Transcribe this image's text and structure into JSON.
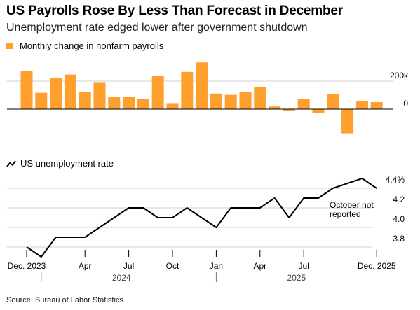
{
  "header": {
    "title": "US Payrolls Rose By Less Than Forecast in December",
    "subtitle": "Unemployment rate edged lower after government shutdown"
  },
  "source": "Source: Bureau of Labor Statistics",
  "colors": {
    "bar": "#ff9f2e",
    "line": "#000000",
    "grid": "#cfcfcf"
  },
  "chart_data": [
    {
      "type": "bar",
      "legend": "Monthly change in nonfarm payrolls",
      "x": [
        "2023-12",
        "2024-01",
        "2024-02",
        "2024-03",
        "2024-04",
        "2024-05",
        "2024-06",
        "2024-07",
        "2024-08",
        "2024-09",
        "2024-10",
        "2024-11",
        "2024-12",
        "2025-01",
        "2025-02",
        "2025-03",
        "2025-04",
        "2025-05",
        "2025-06",
        "2025-07",
        "2025-08",
        "2025-09",
        "2025-10",
        "2025-11",
        "2025-12"
      ],
      "values": [
        274,
        117,
        225,
        247,
        120,
        193,
        85,
        88,
        71,
        239,
        43,
        266,
        334,
        111,
        102,
        120,
        158,
        19,
        -13,
        72,
        -26,
        108,
        -173,
        56,
        50
      ],
      "ytick_labels": [
        "200k",
        "0"
      ],
      "yticks": [
        200,
        0
      ],
      "ylim": [
        -180,
        340
      ]
    },
    {
      "type": "line",
      "legend": "US unemployment rate",
      "x": [
        "2023-12",
        "2024-01",
        "2024-02",
        "2024-03",
        "2024-04",
        "2024-05",
        "2024-06",
        "2024-07",
        "2024-08",
        "2024-09",
        "2024-10",
        "2024-11",
        "2024-12",
        "2025-01",
        "2025-02",
        "2025-03",
        "2025-04",
        "2025-05",
        "2025-06",
        "2025-07",
        "2025-08",
        "2025-09",
        "2025-10",
        "2025-11",
        "2025-12"
      ],
      "values": [
        3.8,
        3.7,
        3.9,
        3.9,
        3.9,
        4.0,
        4.1,
        4.2,
        4.2,
        4.1,
        4.1,
        4.2,
        4.1,
        4.0,
        4.2,
        4.2,
        4.2,
        4.3,
        4.1,
        4.3,
        4.3,
        4.4,
        null,
        4.5,
        4.4
      ],
      "ytick_labels": [
        "4.4%",
        "4.2",
        "4.0",
        "3.8"
      ],
      "yticks": [
        4.4,
        4.2,
        4.0,
        3.8
      ],
      "ylim": [
        3.7,
        4.5
      ],
      "annotation": [
        "October not",
        "reported"
      ]
    }
  ],
  "x_axis": {
    "tick_labels": [
      "Dec. 2023",
      "Apr",
      "Jul",
      "Oct",
      "Jan",
      "Apr",
      "Jul",
      "Dec. 2025"
    ],
    "tick_index": [
      0,
      4,
      7,
      10,
      13,
      16,
      19,
      24
    ],
    "year_labels": [
      "2024",
      "2025"
    ],
    "year_center_index": [
      6.5,
      18.5
    ],
    "year_separator_index": [
      1,
      13
    ]
  }
}
